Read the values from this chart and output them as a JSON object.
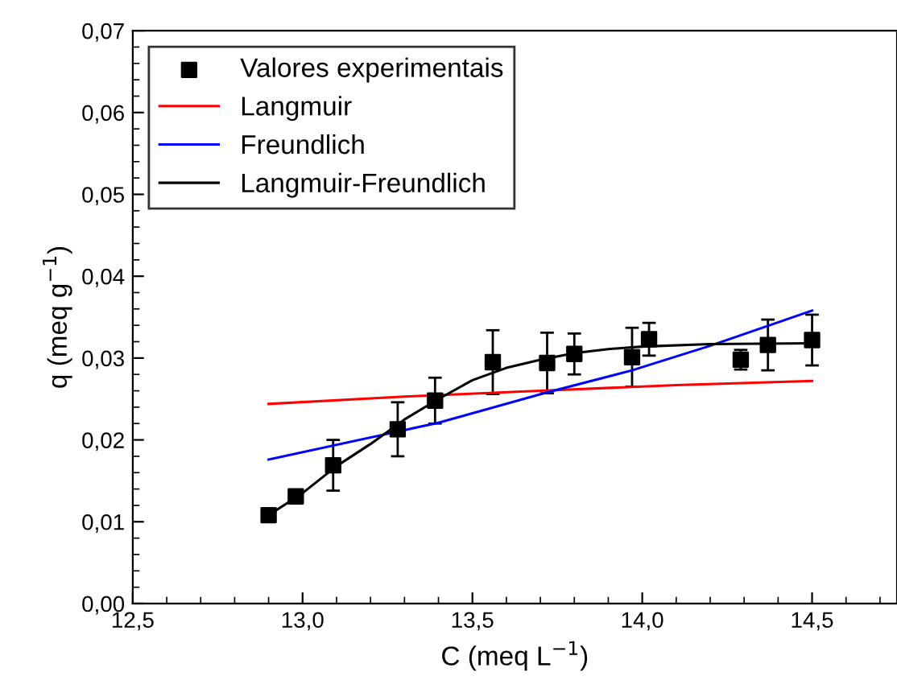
{
  "chart_data": {
    "type": "scatter",
    "xlabel": "C (meq L$^{−1}$)",
    "ylabel": "q (meq g$^{−1}$)",
    "xlim": [
      12.5,
      14.75
    ],
    "ylim": [
      0,
      0.07
    ],
    "xticks": [
      {
        "value": 12.5,
        "label": "12,5"
      },
      {
        "value": 13.0,
        "label": "13,0"
      },
      {
        "value": 13.5,
        "label": "13,5"
      },
      {
        "value": 14.0,
        "label": "14,0"
      },
      {
        "value": 14.5,
        "label": "14,5"
      }
    ],
    "yticks": [
      {
        "value": 0,
        "label": "0,00"
      },
      {
        "value": 0.01,
        "label": "0,01"
      },
      {
        "value": 0.02,
        "label": "0,02"
      },
      {
        "value": 0.03,
        "label": "0,03"
      },
      {
        "value": 0.04,
        "label": "0,04"
      },
      {
        "value": 0.05,
        "label": "0,05"
      },
      {
        "value": 0.06,
        "label": "0,06"
      },
      {
        "value": 0.07,
        "label": "0,07"
      }
    ],
    "grid": false,
    "legend": "top left",
    "series": [
      {
        "name": "Valores experimentais",
        "marker": "square",
        "color": "#000000",
        "x": [
          12.9,
          12.98,
          13.09,
          13.28,
          13.39,
          13.56,
          13.72,
          13.8,
          13.97,
          14.02,
          14.29,
          14.37,
          14.5
        ],
        "values": [
          0.0108,
          0.0131,
          0.0169,
          0.0213,
          0.0248,
          0.0295,
          0.0294,
          0.0305,
          0.0301,
          0.0323,
          0.0298,
          0.0316,
          0.0322
        ],
        "errors": [
          null,
          null,
          0.0031,
          0.0033,
          0.0028,
          0.0039,
          0.0037,
          0.0025,
          0.0036,
          0.002,
          0.0012,
          0.0031,
          0.0031
        ]
      },
      {
        "name": "Langmuir",
        "type": "line",
        "color": "#ff0000",
        "x": [
          12.9,
          13.3,
          13.7,
          14.1,
          14.5
        ],
        "values": [
          0.0244,
          0.0253,
          0.026,
          0.0267,
          0.0272
        ]
      },
      {
        "name": "Freundlich",
        "type": "line",
        "color": "#0000ff",
        "x": [
          12.9,
          13.4,
          13.72,
          13.97,
          14.2,
          14.5
        ],
        "values": [
          0.0176,
          0.0221,
          0.0258,
          0.0285,
          0.0315,
          0.0358
        ]
      },
      {
        "name": "Langmuir-Freundlich",
        "type": "line",
        "color": "#000000",
        "x": [
          12.9,
          13.0,
          13.1,
          13.2,
          13.3,
          13.4,
          13.5,
          13.6,
          13.7,
          13.8,
          13.9,
          14.0,
          14.2,
          14.5
        ],
        "values": [
          0.0108,
          0.0135,
          0.0168,
          0.0195,
          0.0225,
          0.025,
          0.0273,
          0.0288,
          0.0298,
          0.0306,
          0.0311,
          0.0314,
          0.0317,
          0.0318
        ]
      }
    ]
  }
}
